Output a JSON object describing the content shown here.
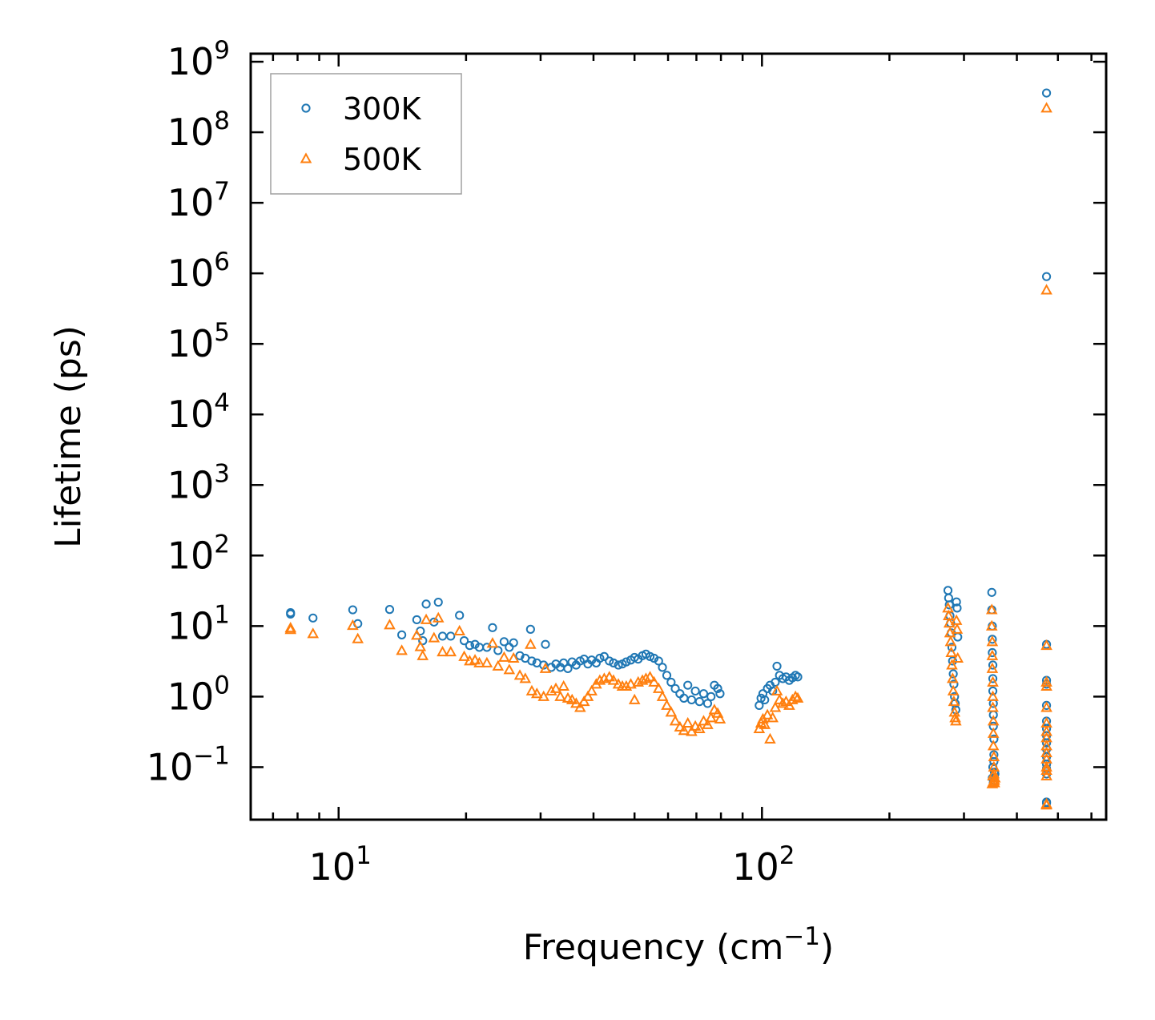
{
  "chart_data": {
    "type": "scatter",
    "title": "",
    "xlabel": "Frequency (cm",
    "xlabel_sup": "−1",
    "xlabel_suffix": ")",
    "ylabel": "Lifetime (ps)",
    "xscale": "log",
    "yscale": "log",
    "xlim": [
      6.2,
      650
    ],
    "ylim": [
      0.018,
      1300000000
    ],
    "x_ticks": [
      {
        "value": 10,
        "base": "10",
        "exp": "1"
      },
      {
        "value": 100,
        "base": "10",
        "exp": "2"
      }
    ],
    "y_ticks": [
      {
        "value": 0.1,
        "base": "10",
        "exp": "−1"
      },
      {
        "value": 1,
        "base": "10",
        "exp": "0"
      },
      {
        "value": 10,
        "base": "10",
        "exp": "1"
      },
      {
        "value": 100,
        "base": "10",
        "exp": "2"
      },
      {
        "value": 1000,
        "base": "10",
        "exp": "3"
      },
      {
        "value": 10000,
        "base": "10",
        "exp": "4"
      },
      {
        "value": 100000,
        "base": "10",
        "exp": "5"
      },
      {
        "value": 1000000,
        "base": "10",
        "exp": "6"
      },
      {
        "value": 10000000,
        "base": "10",
        "exp": "7"
      },
      {
        "value": 100000000,
        "base": "10",
        "exp": "8"
      },
      {
        "value": 1000000000,
        "base": "10",
        "exp": "9"
      }
    ],
    "grid": false,
    "legend_position": "top-left",
    "series": [
      {
        "name": "300K",
        "marker": "circle",
        "color": "#1f77b4",
        "points": [
          [
            7.7,
            15.5
          ],
          [
            7.7,
            14.8
          ],
          [
            8.7,
            13
          ],
          [
            10.8,
            17
          ],
          [
            11.1,
            10.8
          ],
          [
            13.2,
            17.2
          ],
          [
            14.1,
            7.5
          ],
          [
            15.3,
            12.3
          ],
          [
            15.6,
            8.5
          ],
          [
            15.8,
            6.2
          ],
          [
            16.1,
            20.5
          ],
          [
            16.8,
            11.4
          ],
          [
            17.2,
            21.8
          ],
          [
            17.6,
            7.2
          ],
          [
            18.4,
            7.2
          ],
          [
            19.3,
            14.2
          ],
          [
            19.8,
            6.2
          ],
          [
            20.4,
            5.3
          ],
          [
            21,
            5.5
          ],
          [
            21.5,
            5.0
          ],
          [
            22.4,
            5.0
          ],
          [
            23.1,
            9.5
          ],
          [
            23.8,
            4.5
          ],
          [
            24.6,
            6.0
          ],
          [
            25.3,
            5.0
          ],
          [
            25.9,
            5.8
          ],
          [
            26.8,
            3.8
          ],
          [
            27.6,
            3.5
          ],
          [
            28.4,
            9.0
          ],
          [
            28.6,
            3.2
          ],
          [
            29.4,
            3.0
          ],
          [
            30.5,
            2.8
          ],
          [
            30.8,
            5.5
          ],
          [
            31.8,
            2.6
          ],
          [
            32.6,
            2.9
          ],
          [
            33.4,
            2.6
          ],
          [
            34.0,
            3.0
          ],
          [
            34.8,
            2.5
          ],
          [
            35.6,
            3.1
          ],
          [
            36.4,
            2.8
          ],
          [
            37.2,
            3.2
          ],
          [
            38.0,
            3.4
          ],
          [
            38.8,
            2.9
          ],
          [
            39.6,
            3.3
          ],
          [
            40.6,
            3.0
          ],
          [
            41.4,
            3.5
          ],
          [
            42.4,
            3.7
          ],
          [
            43.6,
            3.2
          ],
          [
            44.6,
            3.0
          ],
          [
            45.8,
            2.8
          ],
          [
            46.8,
            2.9
          ],
          [
            47.8,
            3.1
          ],
          [
            49.0,
            3.3
          ],
          [
            50.0,
            3.6
          ],
          [
            51.0,
            3.4
          ],
          [
            52.2,
            3.8
          ],
          [
            53.2,
            4.0
          ],
          [
            54.4,
            3.7
          ],
          [
            55.6,
            3.5
          ],
          [
            57.0,
            3.2
          ],
          [
            58.2,
            2.6
          ],
          [
            59.6,
            2.0
          ],
          [
            61.0,
            1.6
          ],
          [
            62.4,
            1.3
          ],
          [
            64.0,
            1.1
          ],
          [
            65.4,
            0.95
          ],
          [
            66.8,
            1.45
          ],
          [
            68.2,
            0.9
          ],
          [
            69.6,
            1.2
          ],
          [
            71.2,
            0.85
          ],
          [
            72.8,
            1.1
          ],
          [
            74.4,
            0.8
          ],
          [
            75.8,
            1.0
          ],
          [
            77.2,
            1.45
          ],
          [
            78.6,
            1.3
          ],
          [
            79.6,
            1.1
          ],
          [
            98.5,
            0.75
          ],
          [
            99.5,
            0.95
          ],
          [
            100.5,
            1.1
          ],
          [
            101.5,
            0.9
          ],
          [
            103,
            1.3
          ],
          [
            104.5,
            1.45
          ],
          [
            106,
            1.2
          ],
          [
            107.5,
            1.6
          ],
          [
            108.5,
            2.7
          ],
          [
            110,
            2.0
          ],
          [
            112,
            1.8
          ],
          [
            114,
            1.9
          ],
          [
            116,
            1.7
          ],
          [
            118,
            1.85
          ],
          [
            120,
            2.0
          ],
          [
            121.5,
            1.9
          ],
          [
            275,
            32
          ],
          [
            276,
            25
          ],
          [
            277,
            20
          ],
          [
            278,
            14
          ],
          [
            279,
            11
          ],
          [
            280,
            8
          ],
          [
            281,
            5
          ],
          [
            282,
            3.2
          ],
          [
            283,
            2.1
          ],
          [
            284,
            1.5
          ],
          [
            285,
            1.0
          ],
          [
            286,
            0.8
          ],
          [
            287,
            0.65
          ],
          [
            288,
            22
          ],
          [
            289,
            18
          ],
          [
            290,
            7
          ],
          [
            349,
            30
          ],
          [
            349,
            17
          ],
          [
            350,
            10
          ],
          [
            350,
            6.5
          ],
          [
            350,
            4.2
          ],
          [
            351,
            2.8
          ],
          [
            351,
            1.8
          ],
          [
            351,
            1.2
          ],
          [
            352,
            0.8
          ],
          [
            352,
            0.55
          ],
          [
            352,
            0.38
          ],
          [
            353,
            0.25
          ],
          [
            353,
            0.15
          ],
          [
            353,
            0.12
          ],
          [
            354,
            0.085
          ],
          [
            354,
            0.065
          ],
          [
            355,
            0.08
          ],
          [
            351,
            0.1
          ],
          [
            350,
            0.07
          ],
          [
            352,
            0.06
          ],
          [
            470,
            360000000
          ],
          [
            470,
            900000
          ],
          [
            470,
            5.5
          ],
          [
            470,
            1.7
          ],
          [
            470,
            1.5
          ],
          [
            470,
            0.75
          ],
          [
            470,
            0.45
          ],
          [
            470,
            0.35
          ],
          [
            470,
            0.28
          ],
          [
            470,
            0.22
          ],
          [
            470,
            0.18
          ],
          [
            470,
            0.14
          ],
          [
            470,
            0.11
          ],
          [
            470,
            0.095
          ],
          [
            470,
            0.08
          ],
          [
            470,
            0.032
          ],
          [
            470,
            0.031
          ]
        ]
      },
      {
        "name": "500K",
        "marker": "triangle",
        "color": "#ff7f0e",
        "points": [
          [
            7.7,
            9.4
          ],
          [
            7.7,
            8.9
          ],
          [
            8.7,
            7.8
          ],
          [
            10.8,
            10.2
          ],
          [
            11.1,
            6.6
          ],
          [
            13.2,
            10.4
          ],
          [
            14.1,
            4.5
          ],
          [
            15.3,
            7.4
          ],
          [
            15.6,
            5.1
          ],
          [
            15.8,
            3.8
          ],
          [
            16.1,
            12.3
          ],
          [
            16.8,
            6.8
          ],
          [
            17.2,
            13.0
          ],
          [
            17.6,
            4.3
          ],
          [
            18.4,
            4.3
          ],
          [
            19.3,
            8.5
          ],
          [
            19.8,
            3.7
          ],
          [
            20.4,
            3.2
          ],
          [
            21,
            3.3
          ],
          [
            21.5,
            3.0
          ],
          [
            22.4,
            3.0
          ],
          [
            23.1,
            5.7
          ],
          [
            23.8,
            2.7
          ],
          [
            24.6,
            3.6
          ],
          [
            25.3,
            2.4
          ],
          [
            25.9,
            3.5
          ],
          [
            26.8,
            2.0
          ],
          [
            27.6,
            1.8
          ],
          [
            28.4,
            5.5
          ],
          [
            28.6,
            1.2
          ],
          [
            29.4,
            1.1
          ],
          [
            30.5,
            1.0
          ],
          [
            30.8,
            2.5
          ],
          [
            31.8,
            1.2
          ],
          [
            32.6,
            1.3
          ],
          [
            33.4,
            1.0
          ],
          [
            34.0,
            1.4
          ],
          [
            34.8,
            0.95
          ],
          [
            35.6,
            0.9
          ],
          [
            36.4,
            0.8
          ],
          [
            37.2,
            0.7
          ],
          [
            38.0,
            0.85
          ],
          [
            38.8,
            1.0
          ],
          [
            39.6,
            1.2
          ],
          [
            40.6,
            1.5
          ],
          [
            41.4,
            1.7
          ],
          [
            42.4,
            1.8
          ],
          [
            43.6,
            1.9
          ],
          [
            44.6,
            1.7
          ],
          [
            45.8,
            1.5
          ],
          [
            46.8,
            1.4
          ],
          [
            47.8,
            1.4
          ],
          [
            49.0,
            1.5
          ],
          [
            50.0,
            0.9
          ],
          [
            51.0,
            1.6
          ],
          [
            52.2,
            1.7
          ],
          [
            53.2,
            1.8
          ],
          [
            54.4,
            1.9
          ],
          [
            55.6,
            1.6
          ],
          [
            57.0,
            1.3
          ],
          [
            58.2,
            1.0
          ],
          [
            59.6,
            0.75
          ],
          [
            61.0,
            0.6
          ],
          [
            62.4,
            0.45
          ],
          [
            64.0,
            0.37
          ],
          [
            65.4,
            0.33
          ],
          [
            66.8,
            0.42
          ],
          [
            68.2,
            0.32
          ],
          [
            69.6,
            0.38
          ],
          [
            71.2,
            0.35
          ],
          [
            72.8,
            0.45
          ],
          [
            74.4,
            0.4
          ],
          [
            75.8,
            0.5
          ],
          [
            77.2,
            0.65
          ],
          [
            78.6,
            0.58
          ],
          [
            79.6,
            0.48
          ],
          [
            98.5,
            0.35
          ],
          [
            99.5,
            0.42
          ],
          [
            100.5,
            0.48
          ],
          [
            101.5,
            0.4
          ],
          [
            103,
            0.55
          ],
          [
            104.5,
            0.25
          ],
          [
            106,
            0.5
          ],
          [
            107.5,
            0.7
          ],
          [
            108.5,
            1.2
          ],
          [
            110,
            0.9
          ],
          [
            112,
            0.8
          ],
          [
            114,
            0.85
          ],
          [
            116,
            0.75
          ],
          [
            118,
            0.9
          ],
          [
            120,
            1.0
          ],
          [
            121.5,
            0.95
          ],
          [
            275,
            18
          ],
          [
            276,
            14
          ],
          [
            277,
            11
          ],
          [
            278,
            8
          ],
          [
            279,
            6
          ],
          [
            280,
            4.2
          ],
          [
            281,
            2.8
          ],
          [
            282,
            1.8
          ],
          [
            283,
            1.2
          ],
          [
            284,
            0.85
          ],
          [
            285,
            0.6
          ],
          [
            286,
            0.5
          ],
          [
            287,
            0.45
          ],
          [
            288,
            12
          ],
          [
            289,
            9
          ],
          [
            290,
            3.5
          ],
          [
            349,
            17
          ],
          [
            349,
            10
          ],
          [
            350,
            6
          ],
          [
            350,
            3.8
          ],
          [
            350,
            2.5
          ],
          [
            351,
            1.6
          ],
          [
            351,
            1.0
          ],
          [
            351,
            0.7
          ],
          [
            352,
            0.45
          ],
          [
            352,
            0.3
          ],
          [
            352,
            0.2
          ],
          [
            353,
            0.14
          ],
          [
            353,
            0.1
          ],
          [
            353,
            0.08
          ],
          [
            354,
            0.065
          ],
          [
            354,
            0.06
          ],
          [
            355,
            0.07
          ],
          [
            351,
            0.075
          ],
          [
            350,
            0.058
          ],
          [
            352,
            0.062
          ],
          [
            470,
            220000000
          ],
          [
            470,
            580000
          ],
          [
            470,
            5.3
          ],
          [
            470,
            1.6
          ],
          [
            470,
            1.4
          ],
          [
            470,
            0.7
          ],
          [
            470,
            0.42
          ],
          [
            470,
            0.32
          ],
          [
            470,
            0.26
          ],
          [
            470,
            0.2
          ],
          [
            470,
            0.16
          ],
          [
            470,
            0.13
          ],
          [
            470,
            0.1
          ],
          [
            470,
            0.09
          ],
          [
            470,
            0.075
          ],
          [
            470,
            0.03
          ],
          [
            470,
            0.029
          ]
        ]
      }
    ]
  }
}
